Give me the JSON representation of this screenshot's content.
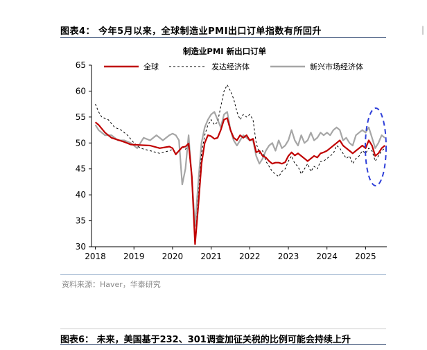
{
  "figure4": {
    "title": "图表4： 今年5月以来，全球制造业PMI出口订单指数有所回升",
    "source": "资料来源：Haver，华泰研究"
  },
  "figure6": {
    "title": "图表6： 未来，美国基于232、301调查加征关税的比例可能会持续上升"
  },
  "colors": {
    "rule": "#1f3864",
    "global": "#c00000",
    "developed": "#000000",
    "emerging": "#a6a6a6",
    "highlight": "#2e3fd9"
  },
  "chart_data": {
    "type": "line",
    "title": "制造业PMI 新出口订单",
    "xlabel": "",
    "ylabel": "",
    "x_ticks": [
      "2018",
      "2019",
      "2020",
      "2021",
      "2022",
      "2023",
      "2024",
      "2025"
    ],
    "y_ticks": [
      30,
      35,
      40,
      45,
      50,
      55,
      60,
      65
    ],
    "ylim": [
      30,
      65
    ],
    "xlim": [
      "2018-01",
      "2025-07"
    ],
    "grid": false,
    "legend_position": "top",
    "annotation": "dashed blue ellipse highlighting 2025",
    "series": [
      {
        "name": "全球",
        "style": "solid",
        "color": "#c00000",
        "points": [
          [
            "2018-01",
            54.0
          ],
          [
            "2018-02",
            53.5
          ],
          [
            "2018-04",
            52.0
          ],
          [
            "2018-06",
            51.0
          ],
          [
            "2018-08",
            50.6
          ],
          [
            "2018-10",
            50.2
          ],
          [
            "2018-12",
            49.7
          ],
          [
            "2019-03",
            49.6
          ],
          [
            "2019-06",
            49.5
          ],
          [
            "2019-09",
            49.0
          ],
          [
            "2019-12",
            49.3
          ],
          [
            "2020-01",
            49.0
          ],
          [
            "2020-02",
            47.8
          ],
          [
            "2020-03",
            48.5
          ],
          [
            "2020-04",
            49.2
          ],
          [
            "2020-05",
            49.3
          ],
          [
            "2020-06",
            49.9
          ],
          [
            "2020-07",
            43.5
          ],
          [
            "2020-08",
            30.5
          ],
          [
            "2020-09",
            38.0
          ],
          [
            "2020-10",
            46.0
          ],
          [
            "2020-11",
            50.0
          ],
          [
            "2020-12",
            51.5
          ],
          [
            "2021-01",
            51.3
          ],
          [
            "2021-02",
            50.8
          ],
          [
            "2021-03",
            51.0
          ],
          [
            "2021-04",
            52.5
          ],
          [
            "2021-05",
            54.5
          ],
          [
            "2021-06",
            54.8
          ],
          [
            "2021-07",
            52.5
          ],
          [
            "2021-08",
            51.0
          ],
          [
            "2021-09",
            50.5
          ],
          [
            "2021-10",
            51.5
          ],
          [
            "2021-11",
            51.0
          ],
          [
            "2021-12",
            51.5
          ],
          [
            "2022-01",
            50.5
          ],
          [
            "2022-02",
            50.8
          ],
          [
            "2022-03",
            48.2
          ],
          [
            "2022-04",
            48.5
          ],
          [
            "2022-05",
            47.5
          ],
          [
            "2022-06",
            47.2
          ],
          [
            "2022-07",
            46.5
          ],
          [
            "2022-08",
            46.0
          ],
          [
            "2022-09",
            46.2
          ],
          [
            "2022-10",
            46.2
          ],
          [
            "2022-11",
            46.0
          ],
          [
            "2022-12",
            46.3
          ],
          [
            "2023-01",
            47.5
          ],
          [
            "2023-02",
            48.2
          ],
          [
            "2023-03",
            47.6
          ],
          [
            "2023-04",
            48.0
          ],
          [
            "2023-05",
            47.5
          ],
          [
            "2023-06",
            47.0
          ],
          [
            "2023-07",
            46.5
          ],
          [
            "2023-08",
            47.0
          ],
          [
            "2023-09",
            47.5
          ],
          [
            "2023-10",
            47.2
          ],
          [
            "2023-11",
            48.0
          ],
          [
            "2023-12",
            48.2
          ],
          [
            "2024-01",
            48.5
          ],
          [
            "2024-02",
            49.0
          ],
          [
            "2024-03",
            49.5
          ],
          [
            "2024-04",
            50.0
          ],
          [
            "2024-05",
            50.5
          ],
          [
            "2024-06",
            49.5
          ],
          [
            "2024-07",
            49.0
          ],
          [
            "2024-08",
            48.5
          ],
          [
            "2024-09",
            48.0
          ],
          [
            "2024-10",
            48.5
          ],
          [
            "2024-11",
            49.0
          ],
          [
            "2024-12",
            49.5
          ],
          [
            "2025-01",
            49.0
          ],
          [
            "2025-02",
            50.5
          ],
          [
            "2025-03",
            49.5
          ],
          [
            "2025-04",
            47.5
          ],
          [
            "2025-05",
            48.0
          ],
          [
            "2025-06",
            49.0
          ],
          [
            "2025-07",
            49.5
          ]
        ]
      },
      {
        "name": "发达经济体",
        "style": "dashed",
        "color": "#000000",
        "points": [
          [
            "2018-01",
            57.5
          ],
          [
            "2018-02",
            56.0
          ],
          [
            "2018-03",
            55.0
          ],
          [
            "2018-05",
            54.5
          ],
          [
            "2018-07",
            53.0
          ],
          [
            "2018-09",
            52.5
          ],
          [
            "2018-11",
            51.5
          ],
          [
            "2019-01",
            50.0
          ],
          [
            "2019-03",
            49.0
          ],
          [
            "2019-06",
            48.5
          ],
          [
            "2019-09",
            48.0
          ],
          [
            "2019-12",
            48.5
          ],
          [
            "2020-01",
            48.8
          ],
          [
            "2020-02",
            48.0
          ],
          [
            "2020-03",
            48.5
          ],
          [
            "2020-04",
            49.2
          ],
          [
            "2020-05",
            48.8
          ],
          [
            "2020-06",
            49.5
          ],
          [
            "2020-07",
            43.0
          ],
          [
            "2020-08",
            31.0
          ],
          [
            "2020-09",
            39.5
          ],
          [
            "2020-10",
            48.0
          ],
          [
            "2020-11",
            51.5
          ],
          [
            "2020-12",
            53.5
          ],
          [
            "2021-01",
            54.5
          ],
          [
            "2021-02",
            53.5
          ],
          [
            "2021-03",
            54.0
          ],
          [
            "2021-04",
            57.0
          ],
          [
            "2021-05",
            60.0
          ],
          [
            "2021-06",
            61.2
          ],
          [
            "2021-07",
            60.0
          ],
          [
            "2021-08",
            58.5
          ],
          [
            "2021-09",
            56.0
          ],
          [
            "2021-10",
            54.5
          ],
          [
            "2021-11",
            55.5
          ],
          [
            "2021-12",
            55.0
          ],
          [
            "2022-01",
            55.5
          ],
          [
            "2022-02",
            54.5
          ],
          [
            "2022-03",
            50.0
          ],
          [
            "2022-04",
            48.0
          ],
          [
            "2022-05",
            48.5
          ],
          [
            "2022-06",
            46.5
          ],
          [
            "2022-07",
            45.5
          ],
          [
            "2022-08",
            44.5
          ],
          [
            "2022-09",
            44.0
          ],
          [
            "2022-10",
            43.5
          ],
          [
            "2022-11",
            44.5
          ],
          [
            "2022-12",
            45.0
          ],
          [
            "2023-01",
            46.5
          ],
          [
            "2023-02",
            47.5
          ],
          [
            "2023-03",
            46.0
          ],
          [
            "2023-04",
            45.5
          ],
          [
            "2023-05",
            44.0
          ],
          [
            "2023-06",
            45.0
          ],
          [
            "2023-07",
            46.0
          ],
          [
            "2023-08",
            44.5
          ],
          [
            "2023-09",
            45.5
          ],
          [
            "2023-10",
            45.0
          ],
          [
            "2023-11",
            46.5
          ],
          [
            "2023-12",
            46.5
          ],
          [
            "2024-01",
            47.0
          ],
          [
            "2024-02",
            47.5
          ],
          [
            "2024-03",
            48.0
          ],
          [
            "2024-04",
            49.5
          ],
          [
            "2024-05",
            49.0
          ],
          [
            "2024-06",
            48.0
          ],
          [
            "2024-07",
            47.0
          ],
          [
            "2024-08",
            47.5
          ],
          [
            "2024-09",
            46.0
          ],
          [
            "2024-10",
            47.0
          ],
          [
            "2024-11",
            47.5
          ],
          [
            "2024-12",
            48.5
          ],
          [
            "2025-01",
            48.0
          ],
          [
            "2025-02",
            49.0
          ],
          [
            "2025-03",
            48.5
          ],
          [
            "2025-04",
            46.5
          ],
          [
            "2025-05",
            47.5
          ],
          [
            "2025-06",
            48.5
          ],
          [
            "2025-07",
            49.0
          ]
        ]
      },
      {
        "name": "新兴市场经济体",
        "style": "solid",
        "color": "#a6a6a6",
        "points": [
          [
            "2018-01",
            53.5
          ],
          [
            "2018-02",
            52.5
          ],
          [
            "2018-04",
            51.5
          ],
          [
            "2018-06",
            51.5
          ],
          [
            "2018-08",
            50.5
          ],
          [
            "2018-10",
            50.5
          ],
          [
            "2018-12",
            50.0
          ],
          [
            "2019-02",
            49.0
          ],
          [
            "2019-04",
            51.0
          ],
          [
            "2019-06",
            50.5
          ],
          [
            "2019-08",
            51.5
          ],
          [
            "2019-10",
            50.5
          ],
          [
            "2019-12",
            51.5
          ],
          [
            "2020-01",
            51.8
          ],
          [
            "2020-02",
            51.5
          ],
          [
            "2020-03",
            50.5
          ],
          [
            "2020-04",
            42.0
          ],
          [
            "2020-05",
            45.0
          ],
          [
            "2020-06",
            51.5
          ],
          [
            "2020-07",
            43.0
          ],
          [
            "2020-08",
            34.0
          ],
          [
            "2020-09",
            42.5
          ],
          [
            "2020-10",
            50.0
          ],
          [
            "2020-11",
            53.0
          ],
          [
            "2020-12",
            54.5
          ],
          [
            "2021-01",
            55.5
          ],
          [
            "2021-02",
            56.0
          ],
          [
            "2021-03",
            54.5
          ],
          [
            "2021-04",
            53.0
          ],
          [
            "2021-05",
            55.5
          ],
          [
            "2021-06",
            56.0
          ],
          [
            "2021-07",
            52.5
          ],
          [
            "2021-08",
            50.5
          ],
          [
            "2021-09",
            49.5
          ],
          [
            "2021-10",
            50.5
          ],
          [
            "2021-11",
            51.5
          ],
          [
            "2021-12",
            51.0
          ],
          [
            "2022-01",
            50.5
          ],
          [
            "2022-02",
            50.5
          ],
          [
            "2022-03",
            47.5
          ],
          [
            "2022-04",
            46.0
          ],
          [
            "2022-05",
            47.0
          ],
          [
            "2022-06",
            48.5
          ],
          [
            "2022-07",
            49.5
          ],
          [
            "2022-08",
            50.0
          ],
          [
            "2022-09",
            48.5
          ],
          [
            "2022-10",
            50.5
          ],
          [
            "2022-11",
            49.0
          ],
          [
            "2022-12",
            49.5
          ],
          [
            "2023-01",
            50.5
          ],
          [
            "2023-02",
            52.5
          ],
          [
            "2023-03",
            50.5
          ],
          [
            "2023-04",
            49.5
          ],
          [
            "2023-05",
            51.5
          ],
          [
            "2023-06",
            50.0
          ],
          [
            "2023-07",
            50.5
          ],
          [
            "2023-08",
            52.0
          ],
          [
            "2023-09",
            50.5
          ],
          [
            "2023-10",
            51.0
          ],
          [
            "2023-11",
            52.0
          ],
          [
            "2023-12",
            51.5
          ],
          [
            "2024-01",
            52.0
          ],
          [
            "2024-02",
            51.5
          ],
          [
            "2024-03",
            52.5
          ],
          [
            "2024-04",
            53.0
          ],
          [
            "2024-05",
            52.5
          ],
          [
            "2024-06",
            50.5
          ],
          [
            "2024-07",
            51.0
          ],
          [
            "2024-08",
            50.0
          ],
          [
            "2024-09",
            49.5
          ],
          [
            "2024-10",
            51.5
          ],
          [
            "2024-11",
            52.0
          ],
          [
            "2024-12",
            52.5
          ],
          [
            "2025-01",
            52.0
          ],
          [
            "2025-02",
            53.0
          ],
          [
            "2025-03",
            51.0
          ],
          [
            "2025-04",
            49.0
          ],
          [
            "2025-05",
            50.0
          ],
          [
            "2025-06",
            51.5
          ],
          [
            "2025-07",
            51.0
          ]
        ]
      }
    ]
  }
}
